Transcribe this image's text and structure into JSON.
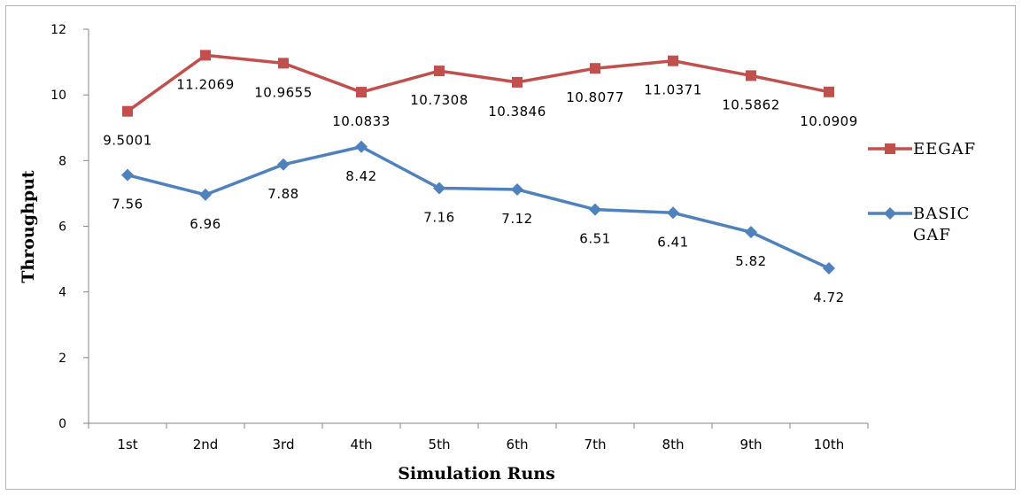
{
  "chart_data": {
    "type": "line",
    "categories": [
      "1st",
      "2nd",
      "3rd",
      "4th",
      "5th",
      "6th",
      "7th",
      "8th",
      "9th",
      "10th"
    ],
    "series": [
      {
        "name": "EEGAF",
        "color": "#c0504d",
        "marker": "square",
        "values": [
          9.5001,
          11.2069,
          10.9655,
          10.0833,
          10.7308,
          10.3846,
          10.8077,
          11.0371,
          10.5862,
          10.0909
        ],
        "labels": [
          "9.5001",
          "11.2069",
          "10.9655",
          "10.0833",
          "10.7308",
          "10.3846",
          "10.8077",
          "11.0371",
          "10.5862",
          "10.0909"
        ]
      },
      {
        "name": "BASIC GAF",
        "name_lines": [
          "BASIC",
          "GAF"
        ],
        "color": "#4f81bd",
        "marker": "diamond",
        "values": [
          7.56,
          6.96,
          7.88,
          8.42,
          7.16,
          7.12,
          6.51,
          6.41,
          5.82,
          4.72
        ],
        "labels": [
          "7.56",
          "6.96",
          "7.88",
          "8.42",
          "7.16",
          "7.12",
          "6.51",
          "6.41",
          "5.82",
          "4.72"
        ]
      }
    ],
    "xlabel": "Simulation Runs",
    "ylabel": "Throughput",
    "ylim": [
      0,
      12
    ],
    "yticks": [
      "0",
      "2",
      "4",
      "6",
      "8",
      "10",
      "12"
    ],
    "grid": false,
    "legend_position": "right"
  }
}
